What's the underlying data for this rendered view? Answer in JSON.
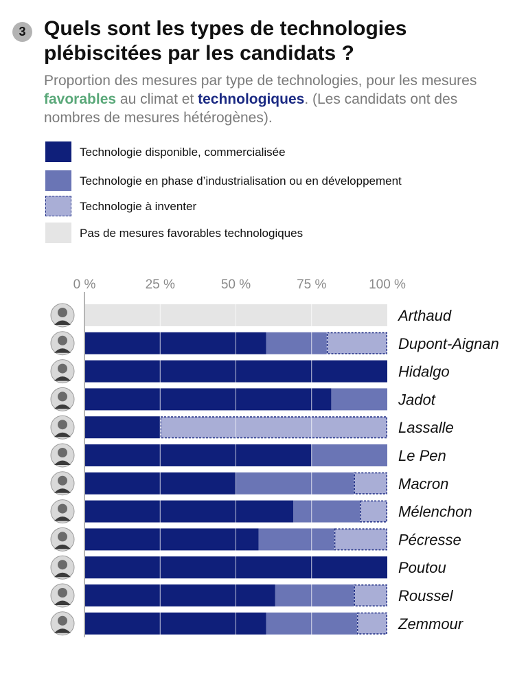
{
  "header": {
    "badge": "3",
    "title": "Quels sont les types de technologies plébiscitées par les candidats ?",
    "subtitle_pre": "Proportion des mesures par type de technologies, pour les mesures ",
    "subtitle_favorable": "favorables",
    "subtitle_mid": " au climat et ",
    "subtitle_tech": "technologiques",
    "subtitle_post": ". (Les candidats ont des nombres de mesures hétérogènes)."
  },
  "legend": [
    {
      "label": "Technologie disponible, commercialisée",
      "color": "#0f1f7a",
      "dashed": false
    },
    {
      "label": "Technologie en phase d’industrialisation ou en développement",
      "color": "#6a75b5",
      "dashed": false
    },
    {
      "label": "Technologie à inventer",
      "color": "#a9aed6",
      "dashed": true
    },
    {
      "label": "Pas de mesures favorables technologiques",
      "color": "#e5e5e5",
      "dashed": false
    }
  ],
  "chart_data": {
    "type": "bar",
    "orientation": "horizontal",
    "stacked": true,
    "unit": "%",
    "xlim": [
      0,
      100
    ],
    "ticks": [
      0,
      25,
      50,
      75,
      100
    ],
    "tick_labels": [
      "0 %",
      "25 %",
      "50 %",
      "75 %",
      "100 %"
    ],
    "grid": true,
    "categories": [
      "Arthaud",
      "Dupont-Aignan",
      "Hidalgo",
      "Jadot",
      "Lassalle",
      "Le Pen",
      "Macron",
      "Mélenchon",
      "Pécresse",
      "Poutou",
      "Roussel",
      "Zemmour"
    ],
    "series": [
      {
        "name": "Technologie disponible, commercialisée",
        "color": "#0f1f7a",
        "values": [
          0,
          60,
          100,
          81.5,
          25,
          75,
          50,
          69,
          57.5,
          100,
          63,
          60
        ]
      },
      {
        "name": "Technologie en phase d’industrialisation ou en développement",
        "color": "#6a75b5",
        "values": [
          0,
          20,
          0,
          18.5,
          0,
          25,
          39,
          22,
          25,
          0,
          26,
          30
        ]
      },
      {
        "name": "Technologie à inventer",
        "color": "#a9aed6",
        "values": [
          0,
          20,
          0,
          0,
          75,
          0,
          11,
          9,
          17.5,
          0,
          11,
          10
        ]
      },
      {
        "name": "Pas de mesures favorables technologiques",
        "color": "#e5e5e5",
        "values": [
          100,
          0,
          0,
          0,
          0,
          0,
          0,
          0,
          0,
          0,
          0,
          0
        ]
      }
    ]
  }
}
